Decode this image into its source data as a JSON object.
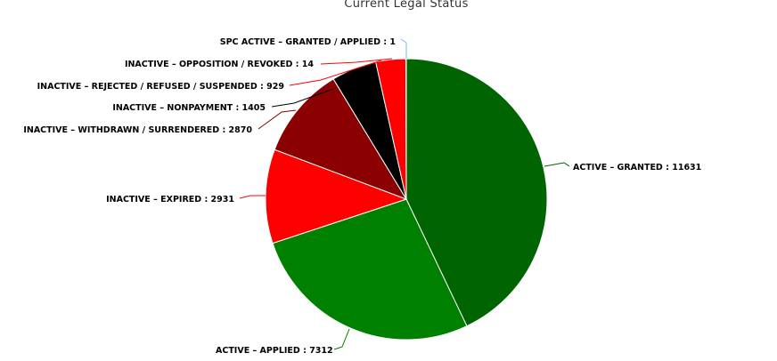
{
  "chart_data": {
    "type": "pie",
    "title": "Current Legal Status",
    "slices": [
      {
        "name": "ACTIVE - GRANTED",
        "value": 11631,
        "color": "#006400",
        "label_text": "ACTIVE – GRANTED : 11631"
      },
      {
        "name": "ACTIVE - APPLIED",
        "value": 7312,
        "color": "#008000",
        "label_text": "ACTIVE – APPLIED : 7312"
      },
      {
        "name": "INACTIVE - EXPIRED",
        "value": 2931,
        "color": "#ff0000",
        "label_text": "INACTIVE – EXPIRED : 2931"
      },
      {
        "name": "INACTIVE - WITHDRAWN / SURRENDERED",
        "value": 2870,
        "color": "#8b0000",
        "label_text": "INACTIVE – WITHDRAWN / SURRENDERED : 2870"
      },
      {
        "name": "INACTIVE - NONPAYMENT",
        "value": 1405,
        "color": "#000000",
        "label_text": "INACTIVE – NONPAYMENT : 1405"
      },
      {
        "name": "INACTIVE - REJECTED / REFUSED / SUSPENDED",
        "value": 929,
        "color": "#ff0000",
        "label_text": "INACTIVE – REJECTED / REFUSED / SUSPENDED : 929"
      },
      {
        "name": "INACTIVE - OPPOSITION / REVOKED",
        "value": 14,
        "color": "#ff0000",
        "label_text": "INACTIVE – OPPOSITION / REVOKED : 14"
      },
      {
        "name": "SPC ACTIVE - GRANTED / APPLIED",
        "value": 1,
        "color": "#7cb5ec",
        "label_text": "SPC ACTIVE – GRANTED / APPLIED : 1"
      }
    ]
  }
}
